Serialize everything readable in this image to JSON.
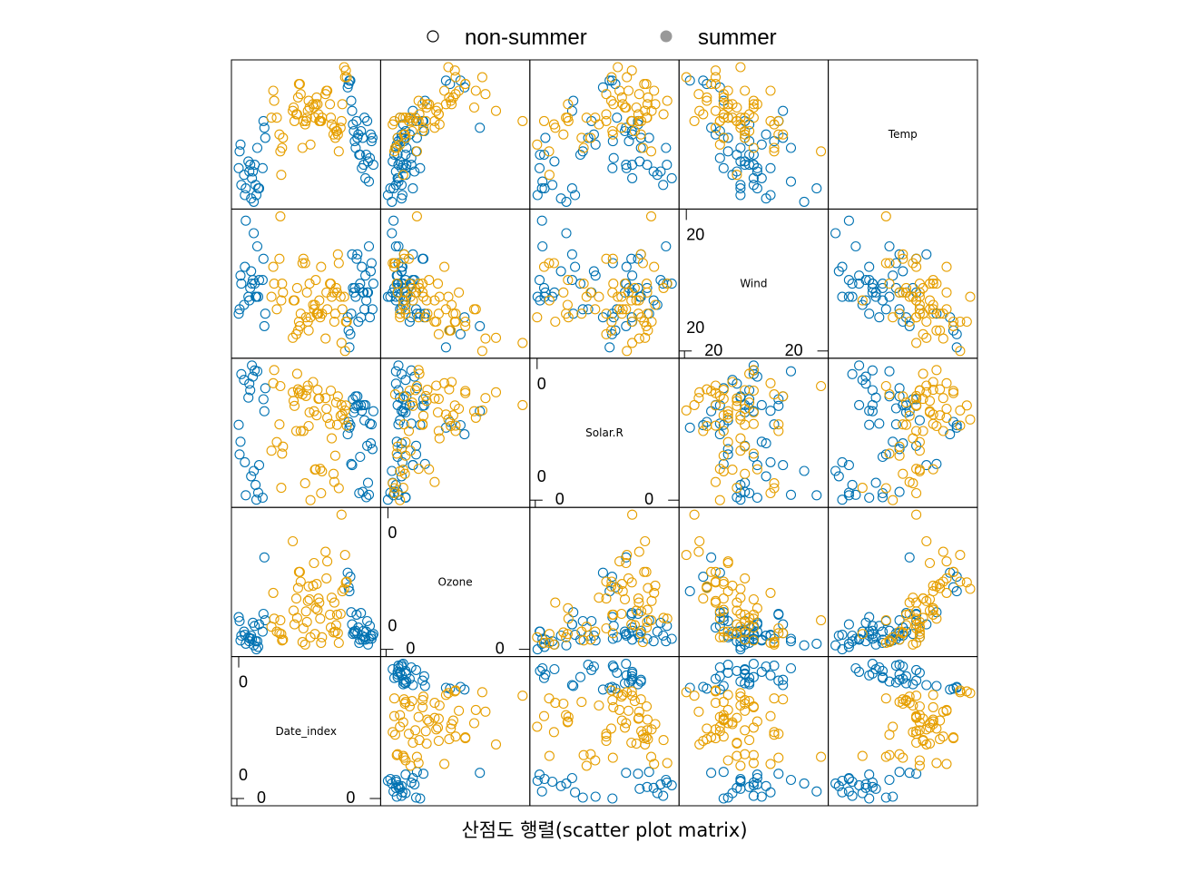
{
  "chart_data": {
    "type": "scatter",
    "title": "",
    "xlabel": "산점도 행렬(scatter plot matrix)",
    "grid": false,
    "legend_position": "top",
    "variables": [
      "Date_index",
      "Ozone",
      "Solar.R",
      "Wind",
      "Temp"
    ],
    "legend": [
      {
        "name": "non-summer",
        "marker": "open-circle",
        "color": "#000000"
      },
      {
        "name": "summer",
        "marker": "filled-circle",
        "color": "#999999"
      }
    ],
    "series_colors": {
      "non-summer": "#0072B2",
      "summer": "#E69F00"
    },
    "diagonal_tick_labels": {
      "Date_index": [
        "0",
        "0",
        "0",
        "0"
      ],
      "Ozone": [
        "0",
        "0",
        "0",
        "0"
      ],
      "Solar.R": [
        "0",
        "0",
        "0",
        "0"
      ],
      "Wind": [
        "20",
        "20",
        "20",
        "20"
      ]
    },
    "series": [
      {
        "name": "non-summer",
        "points": [
          [
            1,
            41,
            190,
            7.4,
            67
          ],
          [
            2,
            36,
            118,
            8.0,
            72
          ],
          [
            3,
            12,
            149,
            12.6,
            74
          ],
          [
            4,
            18,
            313,
            11.5,
            62
          ],
          [
            7,
            23,
            299,
            8.6,
            65
          ],
          [
            8,
            19,
            99,
            13.8,
            59
          ],
          [
            9,
            8,
            19,
            20.1,
            61
          ],
          [
            12,
            16,
            256,
            9.7,
            69
          ],
          [
            13,
            11,
            290,
            9.2,
            66
          ],
          [
            14,
            14,
            274,
            10.9,
            68
          ],
          [
            15,
            18,
            65,
            13.2,
            58
          ],
          [
            16,
            14,
            334,
            11.5,
            64
          ],
          [
            17,
            34,
            307,
            12.0,
            66
          ],
          [
            18,
            6,
            78,
            18.4,
            57
          ],
          [
            19,
            30,
            322,
            11.5,
            68
          ],
          [
            20,
            11,
            44,
            9.7,
            62
          ],
          [
            21,
            1,
            8,
            9.7,
            59
          ],
          [
            22,
            11,
            320,
            16.6,
            73
          ],
          [
            23,
            4,
            25,
            9.7,
            61
          ],
          [
            24,
            32,
            92,
            12.0,
            61
          ],
          [
            28,
            23,
            13,
            12.0,
            67
          ],
          [
            29,
            45,
            252,
            14.9,
            81
          ],
          [
            30,
            115,
            223,
            5.7,
            79
          ],
          [
            31,
            37,
            279,
            7.4,
            76
          ],
          [
            124,
            96,
            167,
            6.9,
            91
          ],
          [
            125,
            78,
            197,
            5.1,
            92
          ],
          [
            126,
            73,
            183,
            2.8,
            93
          ],
          [
            127,
            91,
            189,
            4.6,
            93
          ],
          [
            128,
            47,
            95,
            7.4,
            87
          ],
          [
            129,
            32,
            92,
            15.5,
            84
          ],
          [
            130,
            20,
            252,
            10.9,
            80
          ],
          [
            131,
            23,
            220,
            10.3,
            78
          ],
          [
            132,
            21,
            230,
            10.9,
            75
          ],
          [
            133,
            24,
            259,
            9.7,
            73
          ],
          [
            134,
            44,
            236,
            14.9,
            81
          ],
          [
            135,
            21,
            259,
            15.5,
            76
          ],
          [
            136,
            28,
            238,
            6.3,
            77
          ],
          [
            137,
            9,
            24,
            10.9,
            71
          ],
          [
            138,
            13,
            112,
            11.5,
            71
          ],
          [
            139,
            46,
            237,
            6.9,
            78
          ],
          [
            140,
            18,
            224,
            13.8,
            67
          ],
          [
            141,
            13,
            27,
            10.3,
            76
          ],
          [
            142,
            24,
            238,
            10.3,
            68
          ],
          [
            143,
            16,
            201,
            8.0,
            82
          ],
          [
            144,
            13,
            238,
            12.6,
            64
          ],
          [
            145,
            23,
            14,
            9.2,
            71
          ],
          [
            146,
            36,
            139,
            10.3,
            81
          ],
          [
            147,
            7,
            49,
            10.3,
            69
          ],
          [
            148,
            14,
            20,
            16.6,
            63
          ],
          [
            149,
            30,
            193,
            6.9,
            70
          ],
          [
            150,
            18,
            145,
            13.2,
            77
          ],
          [
            151,
            14,
            191,
            14.3,
            75
          ],
          [
            152,
            18,
            131,
            8.0,
            76
          ],
          [
            153,
            20,
            223,
            11.5,
            68
          ]
        ]
      },
      {
        "name": "summer",
        "points": [
          [
            38,
            29,
            127,
            9.7,
            82
          ],
          [
            40,
            71,
            291,
            13.8,
            90
          ],
          [
            41,
            39,
            323,
            11.5,
            87
          ],
          [
            44,
            23,
            148,
            8.0,
            82
          ],
          [
            47,
            21,
            191,
            14.9,
            77
          ],
          [
            48,
            37,
            284,
            20.7,
            72
          ],
          [
            49,
            20,
            37,
            9.2,
            65
          ],
          [
            50,
            12,
            120,
            11.5,
            73
          ],
          [
            51,
            13,
            137,
            10.3,
            76
          ],
          [
            62,
            135,
            269,
            4.1,
            84
          ],
          [
            63,
            49,
            248,
            9.2,
            85
          ],
          [
            64,
            32,
            236,
            9.2,
            81
          ],
          [
            66,
            64,
            175,
            4.6,
            83
          ],
          [
            67,
            40,
            314,
            10.9,
            83
          ],
          [
            68,
            77,
            276,
            5.1,
            88
          ],
          [
            69,
            97,
            267,
            6.3,
            92
          ],
          [
            70,
            97,
            272,
            5.7,
            92
          ],
          [
            71,
            85,
            175,
            7.4,
            89
          ],
          [
            73,
            10,
            264,
            14.3,
            73
          ],
          [
            74,
            27,
            175,
            14.9,
            81
          ],
          [
            76,
            7,
            48,
            14.3,
            80
          ],
          [
            77,
            48,
            260,
            6.9,
            81
          ],
          [
            78,
            35,
            274,
            10.3,
            82
          ],
          [
            79,
            61,
            285,
            6.3,
            84
          ],
          [
            80,
            79,
            187,
            5.1,
            87
          ],
          [
            81,
            63,
            220,
            11.5,
            85
          ],
          [
            82,
            16,
            7,
            6.9,
            74
          ],
          [
            85,
            80,
            294,
            8.6,
            86
          ],
          [
            86,
            108,
            223,
            8.0,
            85
          ],
          [
            87,
            20,
            81,
            8.6,
            82
          ],
          [
            88,
            52,
            82,
            12.0,
            86
          ],
          [
            89,
            82,
            213,
            7.4,
            88
          ],
          [
            90,
            50,
            275,
            7.4,
            86
          ],
          [
            91,
            64,
            253,
            7.4,
            83
          ],
          [
            92,
            59,
            254,
            9.2,
            81
          ],
          [
            93,
            39,
            83,
            6.9,
            81
          ],
          [
            94,
            9,
            24,
            13.8,
            81
          ],
          [
            95,
            16,
            77,
            7.4,
            82
          ],
          [
            99,
            122,
            255,
            4.0,
            89
          ],
          [
            100,
            89,
            229,
            10.3,
            90
          ],
          [
            101,
            110,
            207,
            8.0,
            90
          ],
          [
            104,
            44,
            192,
            11.5,
            86
          ],
          [
            105,
            28,
            273,
            11.5,
            82
          ],
          [
            106,
            65,
            157,
            9.7,
            80
          ],
          [
            108,
            22,
            71,
            10.3,
            77
          ],
          [
            109,
            59,
            51,
            6.3,
            79
          ],
          [
            110,
            23,
            115,
            7.4,
            76
          ],
          [
            111,
            31,
            244,
            10.9,
            78
          ],
          [
            112,
            44,
            190,
            10.3,
            78
          ],
          [
            113,
            21,
            259,
            15.5,
            77
          ],
          [
            114,
            9,
            36,
            14.3,
            72
          ],
          [
            116,
            45,
            212,
            9.7,
            79
          ],
          [
            117,
            168,
            238,
            3.4,
            81
          ],
          [
            118,
            73,
            215,
            8.0,
            86
          ],
          [
            120,
            76,
            203,
            9.7,
            97
          ],
          [
            121,
            118,
            225,
            2.3,
            94
          ],
          [
            122,
            84,
            237,
            6.3,
            96
          ],
          [
            123,
            85,
            188,
            6.3,
            94
          ]
        ]
      }
    ]
  }
}
